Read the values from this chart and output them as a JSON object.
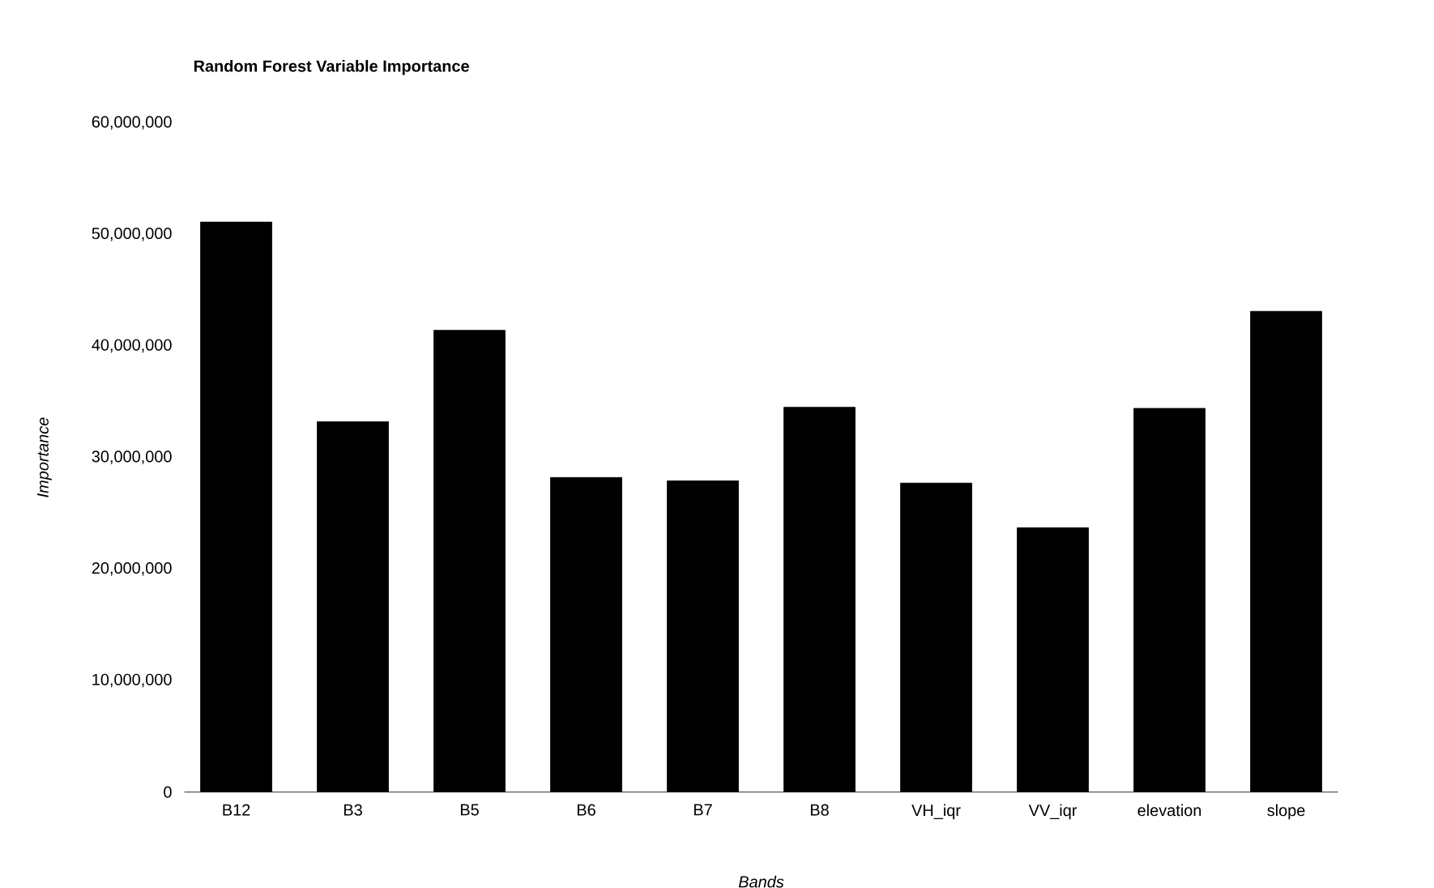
{
  "chart_data": {
    "type": "bar",
    "title": "Random Forest Variable Importance",
    "xlabel": "Bands",
    "ylabel": "Importance",
    "categories": [
      "B12",
      "B3",
      "B5",
      "B6",
      "B7",
      "B8",
      "VH_iqr",
      "VV_iqr",
      "elevation",
      "slope"
    ],
    "values": [
      51100000,
      33200000,
      41400000,
      28200000,
      27900000,
      34500000,
      27700000,
      23700000,
      34400000,
      43100000
    ],
    "color": "#000000",
    "ylim": [
      0,
      60000000
    ],
    "yticks": [
      {
        "value": 0,
        "label": "0"
      },
      {
        "value": 10000000,
        "label": "10,000,000"
      },
      {
        "value": 20000000,
        "label": "20,000,000"
      },
      {
        "value": 30000000,
        "label": "30,000,000"
      },
      {
        "value": 40000000,
        "label": "40,000,000"
      },
      {
        "value": 50000000,
        "label": "50,000,000"
      },
      {
        "value": 60000000,
        "label": "60,000,000"
      }
    ],
    "grid": false
  }
}
